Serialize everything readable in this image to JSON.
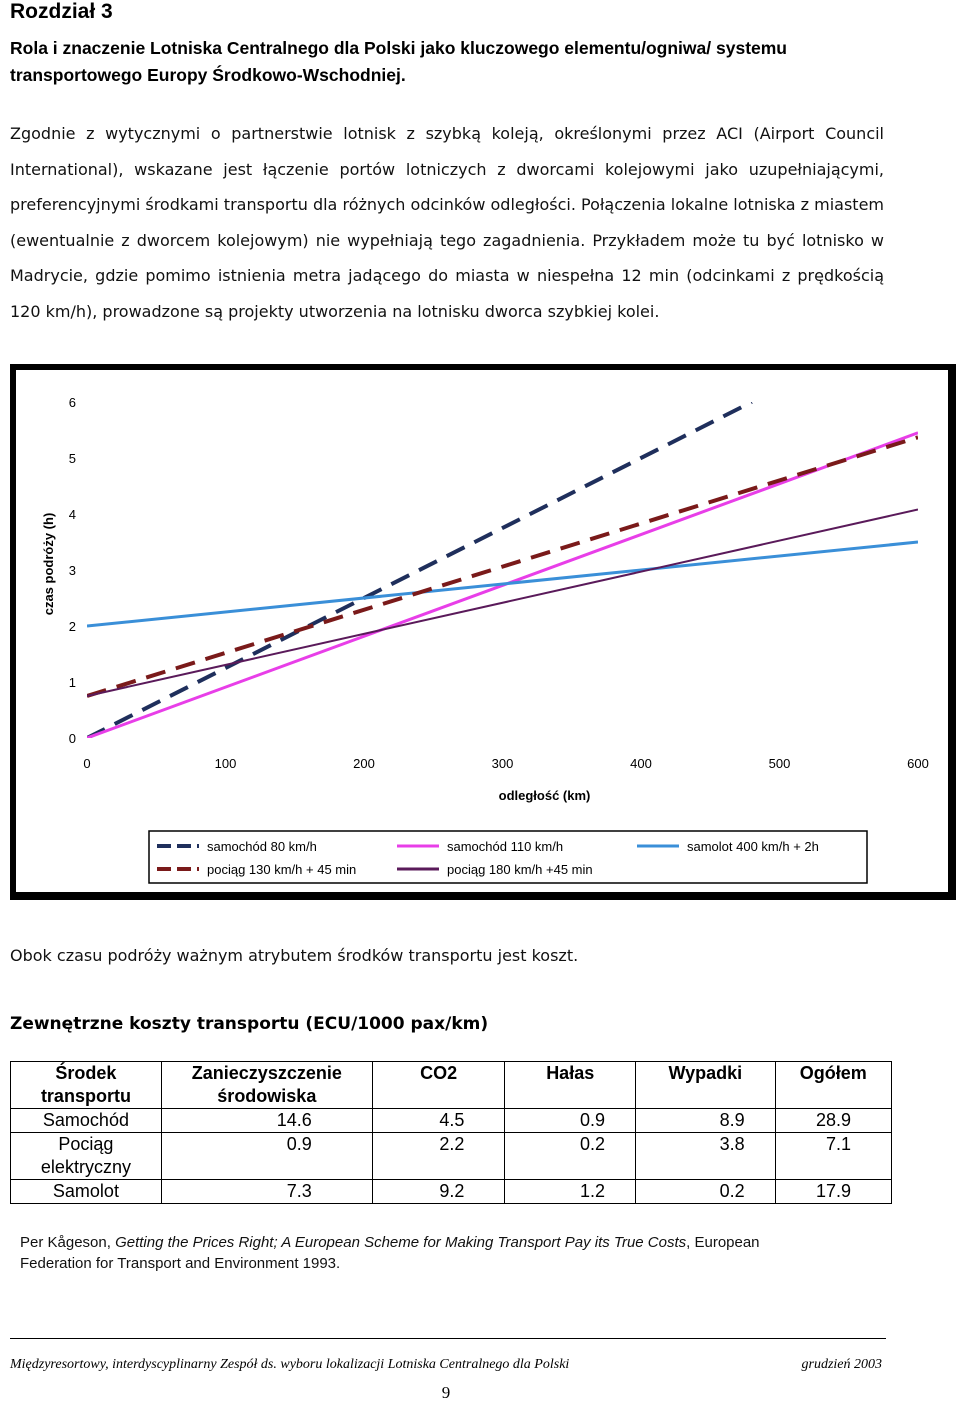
{
  "chapter": "Rozdział 3",
  "subtitle": "Rola i znaczenie Lotniska Centralnego dla Polski jako kluczowego elementu/ogniwa/ systemu transportowego Europy Środkowo-Wschodniej.",
  "paragraph": "Zgodnie z wytycznymi o partnerstwie lotnisk z szybką koleją, określonymi przez ACI (Airport Council International), wskazane jest łączenie portów lotniczych z dworcami kolejowymi jako uzupełniającymi, preferencyjnymi środkami transportu dla różnych odcinków odległości. Połączenia lokalne lotniska z miastem (ewentualnie z dworcem kolejowym) nie wypełniają tego zagadnienia. Przykładem może tu być lotnisko w Madrycie, gdzie pomimo istnienia metra jadącego do miasta w niespełna 12 min (odcinkami z prędkością 120 km/h), prowadzone są projekty utworzenia na lotnisku dworca szybkiej kolei.",
  "chart_data": {
    "type": "line",
    "xlabel": "odległość (km)",
    "ylabel": "czas podróży (h)",
    "xlim": [
      0,
      600
    ],
    "ylim": [
      0,
      6
    ],
    "xticks": [
      "0",
      "100",
      "200",
      "300",
      "400",
      "500",
      "600"
    ],
    "yticks": [
      "0",
      "1",
      "2",
      "3",
      "4",
      "5",
      "6"
    ],
    "grid": false,
    "legend_position": "bottom",
    "series": [
      {
        "name": "samochód 80 km/h",
        "color": "#1f2f5c",
        "dash": "long",
        "x": [
          0,
          480
        ],
        "y": [
          0,
          6.0
        ]
      },
      {
        "name": "samochód 110 km/h",
        "color": "#e83ee8",
        "dash": "solid",
        "x": [
          0,
          600
        ],
        "y": [
          0,
          5.45
        ]
      },
      {
        "name": "samolot 400 km/h + 2h",
        "color": "#3a8fd8",
        "dash": "solid",
        "x": [
          0,
          600
        ],
        "y": [
          2.0,
          3.5
        ]
      },
      {
        "name": "pociąg 130 km/h + 45 min",
        "color": "#7a1a1a",
        "dash": "long",
        "x": [
          0,
          600
        ],
        "y": [
          0.75,
          5.37
        ]
      },
      {
        "name": "pociąg 180 km/h +45 min",
        "color": "#5a1a5a",
        "dash": "solid",
        "x": [
          0,
          600
        ],
        "y": [
          0.75,
          4.08
        ]
      }
    ]
  },
  "cost_intro": "Obok czasu podróży ważnym atrybutem środków transportu jest koszt.",
  "table": {
    "title": "Zewnętrzne koszty transportu (ECU/1000 pax/km)",
    "headers": [
      "Środek transportu",
      "Zanieczyszczenie środowiska",
      "CO2",
      "Hałas",
      "Wypadki",
      "Ogółem"
    ],
    "rows": [
      [
        "Samochód",
        "14.6",
        "4.5",
        "0.9",
        "8.9",
        "28.9"
      ],
      [
        "Pociąg elektryczny",
        "0.9",
        "2.2",
        "0.2",
        "3.8",
        "7.1"
      ],
      [
        "Samolot",
        "7.3",
        "9.2",
        "1.2",
        "0.2",
        "17.9"
      ]
    ]
  },
  "source": {
    "author": "Per Kågeson, ",
    "title": "Getting the Prices Right; A European Scheme for Making Transport Pay its True Costs",
    "rest": ", European Federation for Transport and Environment 1993."
  },
  "footer": {
    "left": "Międzyresortowy, interdyscyplinarny Zespół ds. wyboru lokalizacji Lotniska Centralnego dla Polski",
    "right": "grudzień 2003",
    "page": "9"
  }
}
